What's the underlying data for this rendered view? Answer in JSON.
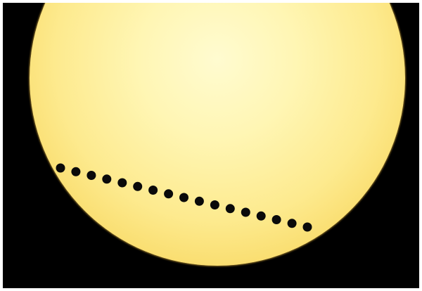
{
  "scene": {
    "subject": "sun-disk-with-planet-transit",
    "colors": {
      "sky": "#000000",
      "frame": "#ffffff",
      "sun_center": "#fffbd0",
      "sun_edge": "#eec64a",
      "planet": "#0a0a0a"
    },
    "transit_dot_count": 17
  }
}
